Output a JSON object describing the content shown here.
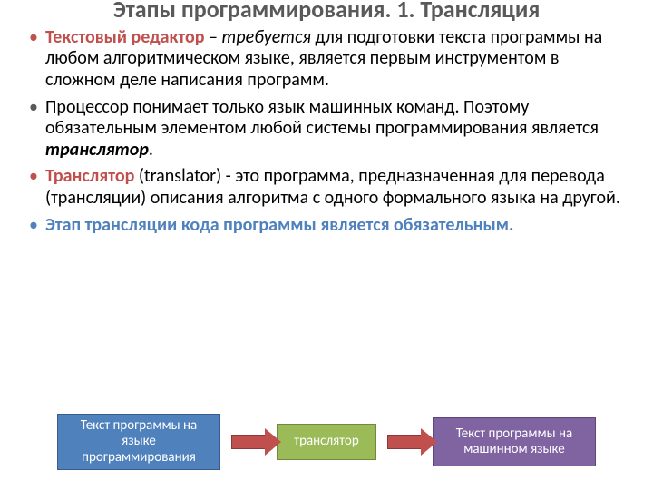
{
  "title": "Этапы программирования. 1. Трансляция",
  "bullets": {
    "b1_term": "Текстовый редактор",
    "b1_dash": " – ",
    "b1_ital": "требуется",
    "b1_rest": " для подготовки текста программы на любом алгоритмическом языке, является первым инструментом в сложном деле написания программ.",
    "b2_pre": "Процессор понимает только язык машинных команд. Поэтому обязательным элементом любой системы программирования является ",
    "b2_em": "транслятор",
    "b2_post": ".",
    "b3_term": "Транслятор",
    "b3_rest": " (translator) - это программа, предназначенная для перевода (трансляции) описания алгоритма с одного формального языка на другой.",
    "b4": "Этап трансляции кода программы является обязательным."
  },
  "diagram": {
    "box1": "Текст программы на языке программирования",
    "box2": "транслятор",
    "box3": "Текст программы на машинном языке",
    "colors": {
      "box1_bg": "#4f81bd",
      "box2_bg": "#9bbb59",
      "box3_bg": "#8064a2",
      "arrow": "#c0504d"
    }
  }
}
